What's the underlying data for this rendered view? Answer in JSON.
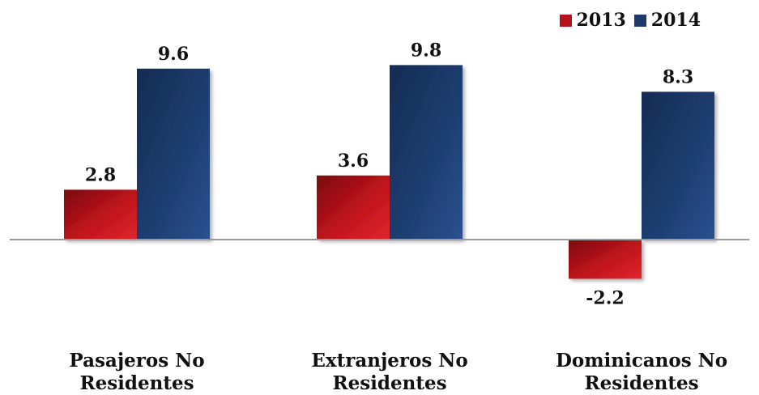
{
  "chart_data": {
    "type": "bar",
    "categories": [
      "Pasajeros No Residentes",
      "Extranjeros No Residentes",
      "Dominicanos No Residentes"
    ],
    "category_lines": [
      [
        "Pasajeros No",
        "Residentes"
      ],
      [
        "Extranjeros No",
        "Residentes"
      ],
      [
        "Dominicanos No",
        "Residentes"
      ]
    ],
    "series": [
      {
        "name": "2013",
        "values": [
          2.8,
          3.6,
          -2.2
        ],
        "color": "#c0141c"
      },
      {
        "name": "2014",
        "values": [
          9.6,
          9.8,
          8.3
        ],
        "color": "#1e3f73"
      }
    ],
    "value_labels": [
      [
        "2.8",
        "3.6",
        "-2.2"
      ],
      [
        "9.6",
        "9.8",
        "8.3"
      ]
    ],
    "title": "",
    "xlabel": "",
    "ylabel": "",
    "ylim": [
      -5.5,
      13.5
    ],
    "grid": false,
    "legend": "top-right"
  }
}
